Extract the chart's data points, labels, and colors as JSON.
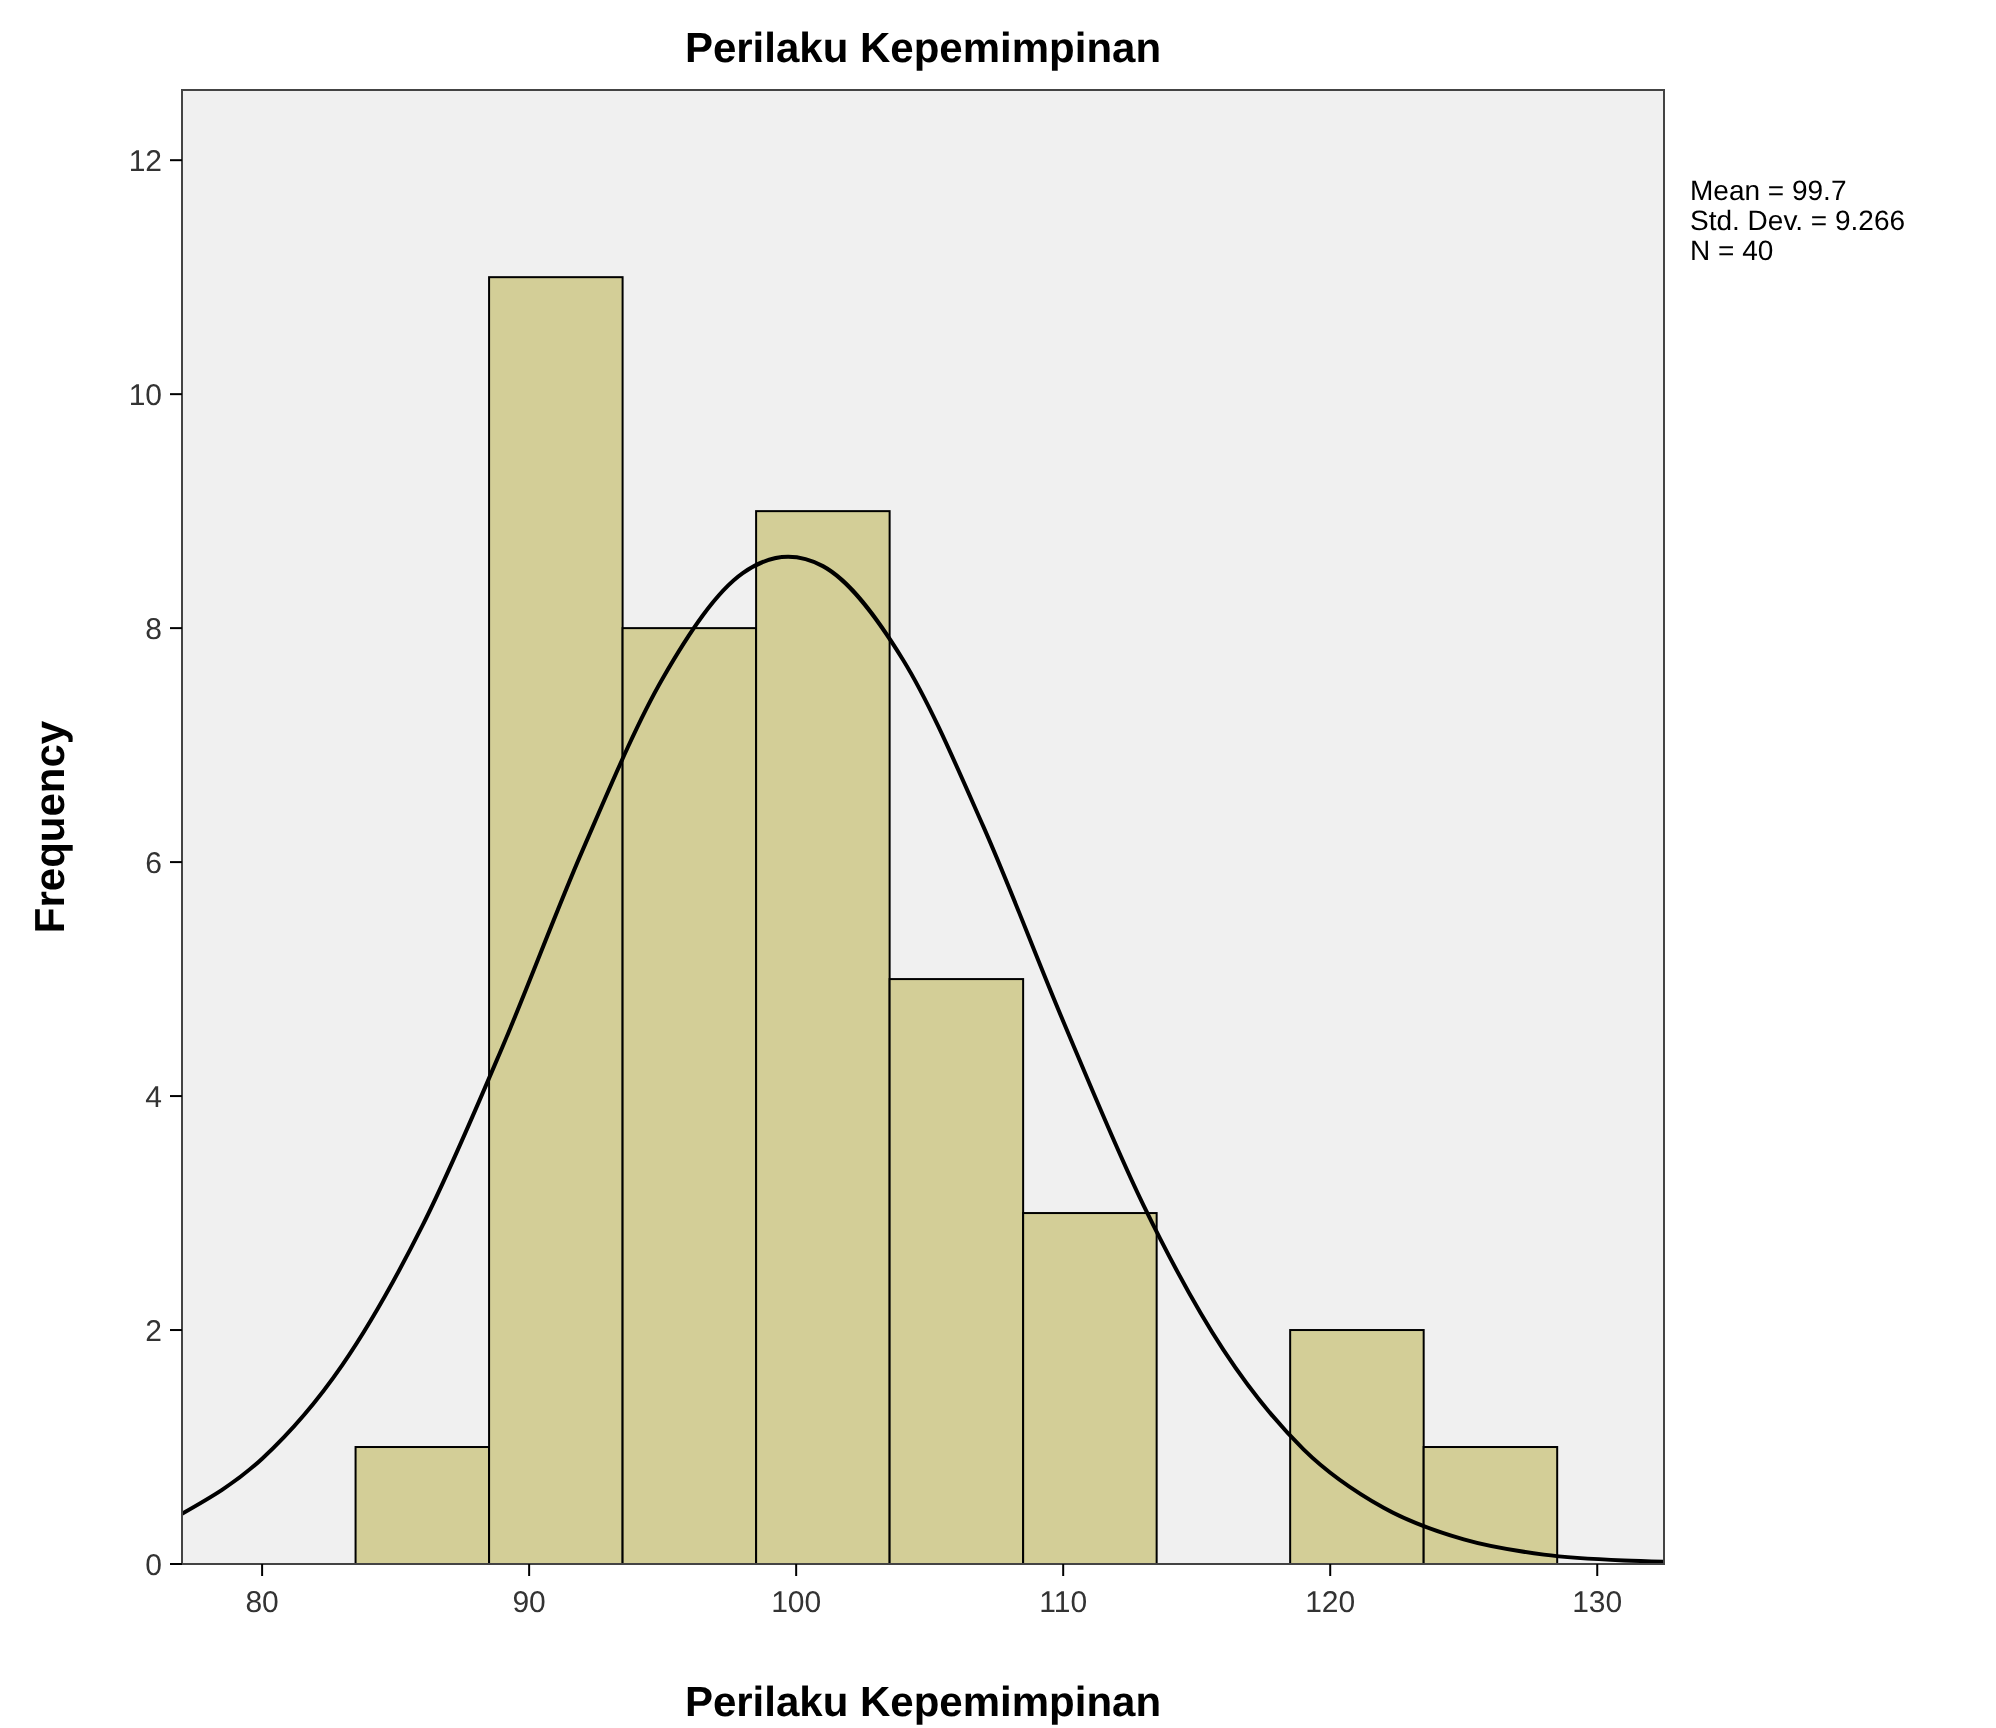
{
  "chart_data": {
    "type": "histogram",
    "title": "Perilaku Kepemimpinan",
    "xlabel": "Perilaku Kepemimpinan",
    "ylabel": "Frequency",
    "bins": [
      83.5,
      88.5,
      93.5,
      98.5,
      103.5,
      108.5,
      113.5,
      118.5,
      123.5,
      128.5
    ],
    "values": [
      1,
      11,
      8,
      9,
      5,
      3,
      0,
      2,
      1
    ],
    "color": "#d3ce97",
    "series": [
      {
        "type": "line",
        "color": "#000000",
        "x": [
          77,
          80,
          83,
          86,
          89,
          92,
          95,
          98,
          99.7,
          101,
          104,
          107,
          110,
          113,
          116,
          119,
          122,
          125,
          128,
          131,
          132.5
        ],
        "values": [
          0.43,
          0.9,
          1.7,
          2.89,
          4.42,
          6.1,
          7.57,
          8.47,
          8.61,
          8.53,
          7.73,
          6.31,
          4.64,
          3.07,
          1.83,
          0.98,
          0.48,
          0.21,
          0.08,
          0.03,
          0.02
        ]
      }
    ],
    "xlim": [
      77,
      132.5
    ],
    "ylim": [
      0,
      12.6
    ],
    "xticks": [
      80,
      90,
      100,
      110,
      120,
      130
    ],
    "yticks": [
      0,
      2,
      4,
      6,
      8,
      10,
      12
    ],
    "grid": false,
    "marker": "none",
    "annotations": [
      "Mean = 99.7",
      "Std. Dev. = 9.266",
      "N = 40"
    ]
  }
}
